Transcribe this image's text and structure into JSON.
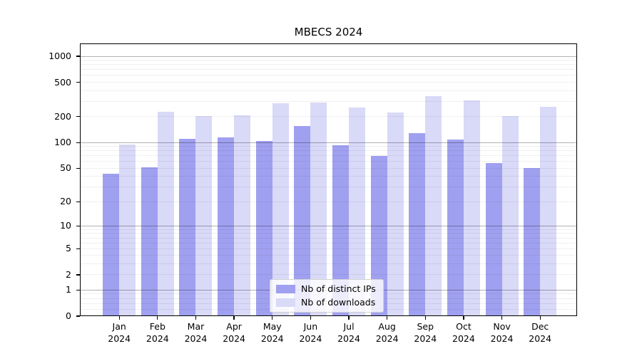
{
  "title": "MBECS 2024",
  "legend": {
    "items": [
      {
        "label": "Nb of distinct IPs",
        "color": "#a0a0f0"
      },
      {
        "label": "Nb of downloads",
        "color": "#d9d9f8"
      }
    ]
  },
  "chart_data": {
    "type": "bar",
    "title": "MBECS 2024",
    "categories": [
      "Jan 2024",
      "Feb 2024",
      "Mar 2024",
      "Apr 2024",
      "May 2024",
      "Jun 2024",
      "Jul 2024",
      "Aug 2024",
      "Sep 2024",
      "Oct 2024",
      "Nov 2024",
      "Dec 2024"
    ],
    "series": [
      {
        "name": "Nb of distinct IPs",
        "color": "#a0a0f0",
        "values": [
          43,
          51,
          110,
          115,
          105,
          155,
          93,
          70,
          128,
          109,
          58,
          50
        ]
      },
      {
        "name": "Nb of downloads",
        "color": "#d9d9f8",
        "values": [
          95,
          226,
          205,
          208,
          285,
          290,
          255,
          222,
          344,
          310,
          205,
          262
        ]
      }
    ],
    "xlabel": "",
    "ylabel": "",
    "yscale": "symlog ln(1+y)",
    "ylim": [
      0,
      1400
    ],
    "yticks": [
      0,
      1,
      2,
      5,
      10,
      20,
      50,
      100,
      200,
      500,
      1000
    ],
    "major_grid_values": [
      1,
      10,
      100,
      1000
    ],
    "minor_grid_values": [
      0.2,
      0.4,
      0.6,
      0.8,
      2,
      3,
      4,
      5,
      6,
      7,
      8,
      9,
      20,
      30,
      40,
      50,
      60,
      70,
      80,
      90,
      200,
      300,
      400,
      500,
      600,
      700,
      800,
      900
    ],
    "grid": true,
    "legend_position": "lower center"
  },
  "colors": {
    "background": "#ffffff",
    "axis": "#000000",
    "major_grid": "rgba(0,0,0,0.30)",
    "minor_grid": "rgba(0,0,0,0.06)",
    "legend_border": "#d2d2d2",
    "legend_background": "rgba(255,255,255,0.8)"
  }
}
